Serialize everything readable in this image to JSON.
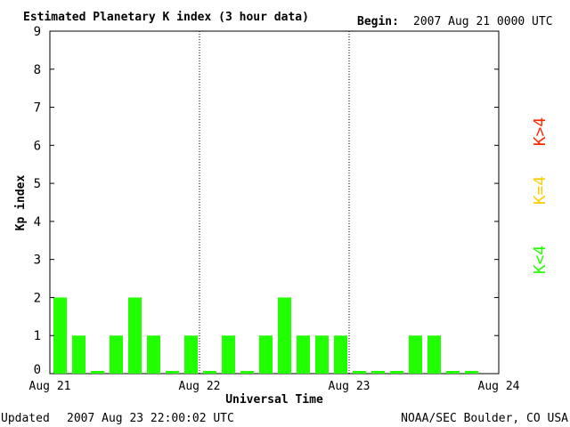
{
  "chart_data": {
    "type": "bar",
    "title": "Estimated Planetary K index (3 hour data)",
    "begin_label": "Begin:",
    "begin_value": "2007 Aug 21 0000 UTC",
    "xlabel": "Universal Time",
    "ylabel": "Kp index",
    "ylim": [
      0,
      9
    ],
    "yticks": [
      "0",
      "1",
      "2",
      "3",
      "4",
      "5",
      "6",
      "7",
      "8",
      "9"
    ],
    "xticks": [
      "Aug 21",
      "Aug 22",
      "Aug 23",
      "Aug 24"
    ],
    "bins_per_day": 8,
    "day_separators": "dotted",
    "grid": false,
    "values": [
      2,
      1,
      0,
      1,
      2,
      1,
      0,
      1,
      0,
      1,
      0,
      1,
      2,
      1,
      1,
      1,
      0,
      0,
      0,
      1,
      1,
      0,
      0
    ],
    "bar_color": "#22ff00",
    "legend": [
      {
        "label": "K<4",
        "color": "#22ff00"
      },
      {
        "label": "K=4",
        "color": "#ffcc00"
      },
      {
        "label": "K>4",
        "color": "#ff2a00"
      }
    ]
  },
  "footer": {
    "updated_label": "Updated",
    "updated_value": "2007 Aug 23 22:00:02 UTC",
    "source": "NOAA/SEC Boulder, CO USA"
  }
}
